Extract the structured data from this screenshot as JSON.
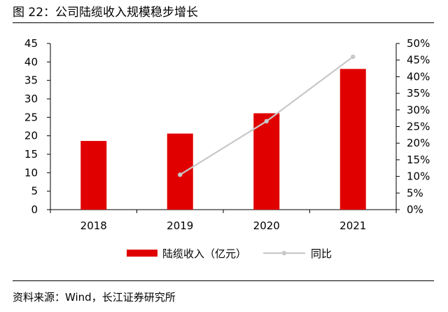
{
  "figure": {
    "title": "图 22：公司陆缆收入规模稳步增长",
    "source": "资料来源：Wind，长江证券研究所"
  },
  "colors": {
    "bar": "#e00000",
    "line": "#c8c8c8"
  },
  "chart_data": {
    "type": "bar",
    "categories": [
      "2018",
      "2019",
      "2020",
      "2021"
    ],
    "series": [
      {
        "name": "陆缆收入（亿元）",
        "type": "bar",
        "axis": "left",
        "values": [
          18.6,
          20.6,
          26.1,
          38.1
        ]
      },
      {
        "name": "同比",
        "type": "line",
        "axis": "right",
        "values": [
          null,
          10.5,
          26.6,
          46.0
        ]
      }
    ],
    "y_left": {
      "min": 0,
      "max": 45,
      "step": 5,
      "ticks": [
        "0",
        "5",
        "10",
        "15",
        "20",
        "25",
        "30",
        "35",
        "40",
        "45"
      ]
    },
    "y_right": {
      "min": 0,
      "max": 50,
      "step": 5,
      "ticks": [
        "0%",
        "5%",
        "10%",
        "15%",
        "20%",
        "25%",
        "30%",
        "35%",
        "40%",
        "45%",
        "50%"
      ]
    },
    "grid": false,
    "legend_position": "bottom"
  }
}
